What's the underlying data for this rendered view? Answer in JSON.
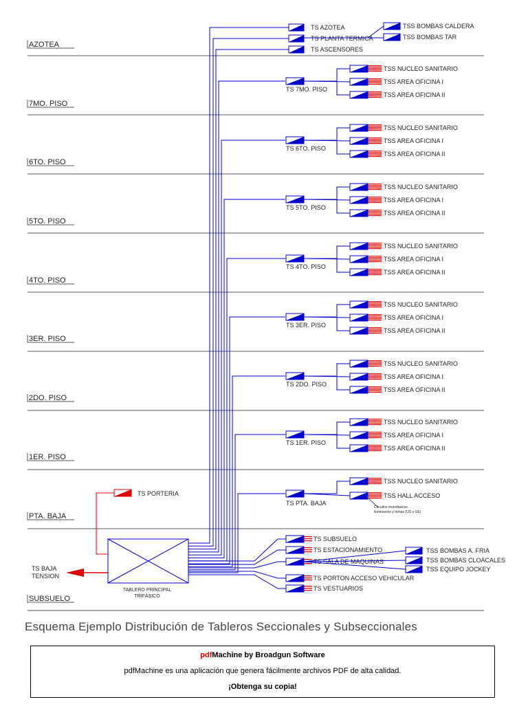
{
  "floors": [
    {
      "id": "azotea",
      "label": "AZOTEA"
    },
    {
      "id": "7mo",
      "label": "7MO. PISO"
    },
    {
      "id": "6to",
      "label": "6TO. PISO"
    },
    {
      "id": "5to",
      "label": "5TO. PISO"
    },
    {
      "id": "4to",
      "label": "4TO. PISO"
    },
    {
      "id": "3er",
      "label": "3ER. PISO"
    },
    {
      "id": "2do",
      "label": "2DO. PISO"
    },
    {
      "id": "1er",
      "label": "1ER. PISO"
    },
    {
      "id": "ptabaja",
      "label": "PTA. BAJA"
    },
    {
      "id": "subsuelo",
      "label": "SUBSUELO"
    }
  ],
  "azotea": {
    "boards": [
      "TS AZOTEA",
      "TS PLANTA TERMICA",
      "TS ASCENSORES"
    ],
    "sub_boards": [
      "TSS BOMBAS CALDERA",
      "TSS BOMBAS TAR"
    ]
  },
  "office_floors": [
    {
      "board": "TS 7MO. PISO",
      "subs": [
        "TSS NUCLEO SANITARIO",
        "TSS AREA OFICINA I",
        "TSS AREA OFICINA II"
      ]
    },
    {
      "board": "TS 6TO. PISO",
      "subs": [
        "TSS NUCLEO SANITARIO",
        "TSS AREA OFICINA I",
        "TSS AREA OFICINA II"
      ]
    },
    {
      "board": "TS 5TO. PISO",
      "subs": [
        "TSS NUCLEO SANITARIO",
        "TSS AREA OFICINA I",
        "TSS AREA OFICINA II"
      ]
    },
    {
      "board": "TS 4TO. PISO",
      "subs": [
        "TSS NUCLEO SANITARIO",
        "TSS AREA OFICINA I",
        "TSS AREA OFICINA II"
      ]
    },
    {
      "board": "TS 3ER. PISO",
      "subs": [
        "TSS NUCLEO SANITARIO",
        "TSS AREA OFICINA I",
        "TSS AREA OFICINA II"
      ]
    },
    {
      "board": "TS 2DO. PISO",
      "subs": [
        "TSS NUCLEO SANITARIO",
        "TSS AREA OFICINA I",
        "TSS AREA OFICINA II"
      ]
    },
    {
      "board": "TS 1ER. PISO",
      "subs": [
        "TSS NUCLEO SANITARIO",
        "TSS AREA OFICINA I",
        "TSS AREA OFICINA II"
      ]
    }
  ],
  "ground": {
    "board": "TS PTA. BAJA",
    "subs": [
      "TSS NUCLEO SANITARIO",
      "TSS HALL ACCESO"
    ],
    "note_line1": "Circuitos monofasicos",
    "note_line2": "iluminación y tomas (UG y UE)",
    "porteria": "TS  PORTERIA"
  },
  "basement": {
    "boards": [
      "TS SUBSUELO",
      "TS ESTACIONAMIENTO",
      "TS SALA DE MAQUINAS",
      "TS PORTON ACCESO VEHICULAR",
      "TS VESTUARIOS"
    ],
    "sub_boards": [
      "TSS BOMBAS A. FRIA",
      "TSS BOMBAS CLOACALES",
      "TSS EQUIPO JOCKEY"
    ],
    "main_panel_line1": "TABLERO PRINCIPAL",
    "main_panel_line2": "TRIFÁSICO",
    "low_voltage_line1": "TS  BAJA",
    "low_voltage_line2": "TENSION"
  },
  "caption": "Esquema  Ejemplo Distribución de Tableros Seccionales y Subseccionales",
  "banner": {
    "brand_red": "pdf",
    "brand_rest": "Machine by Broadgun Software",
    "line2": "pdfMachine es una aplicación que genera fácilmente archivos PDF de alta calidad.",
    "line3": "¡Obtenga su copia!"
  },
  "colors": {
    "blue": "#0000cc",
    "red": "#e00000",
    "line": "#555555"
  }
}
